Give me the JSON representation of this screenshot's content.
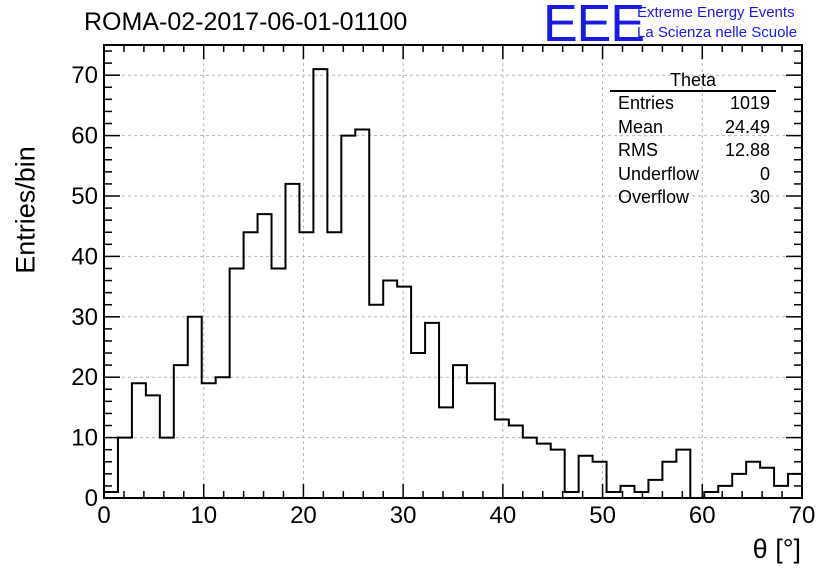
{
  "title": "ROMA-02-2017-06-01-01100",
  "logo": {
    "mark": "EEE",
    "line1": "Extreme Energy Events",
    "line2": "La Scienza nelle Scuole",
    "color": "#1a1ae6"
  },
  "stats": {
    "name": "Theta",
    "rows": [
      {
        "label": "Entries",
        "value": "1019"
      },
      {
        "label": "Mean",
        "value": "24.49"
      },
      {
        "label": "RMS",
        "value": "12.88"
      },
      {
        "label": "Underflow",
        "value": "0"
      },
      {
        "label": "Overflow",
        "value": "30"
      }
    ]
  },
  "chart_data": {
    "type": "bar",
    "style": "step-histogram",
    "xlabel": "θ [°]",
    "ylabel": "Entries/bin",
    "xlim": [
      0,
      70
    ],
    "ylim": [
      0,
      75
    ],
    "bin_width": 1.4,
    "x_ticks": [
      0,
      10,
      20,
      30,
      40,
      50,
      60,
      70
    ],
    "y_ticks": [
      0,
      10,
      20,
      30,
      40,
      50,
      60,
      70
    ],
    "grid": true,
    "values": [
      1,
      10,
      19,
      17,
      10,
      22,
      30,
      19,
      20,
      38,
      44,
      47,
      38,
      52,
      44,
      71,
      44,
      60,
      61,
      32,
      36,
      35,
      24,
      29,
      15,
      22,
      19,
      19,
      13,
      12,
      10,
      9,
      8,
      1,
      7,
      6,
      1,
      2,
      1,
      3,
      6,
      8,
      0,
      1,
      2,
      4,
      6,
      5,
      2,
      4
    ]
  }
}
